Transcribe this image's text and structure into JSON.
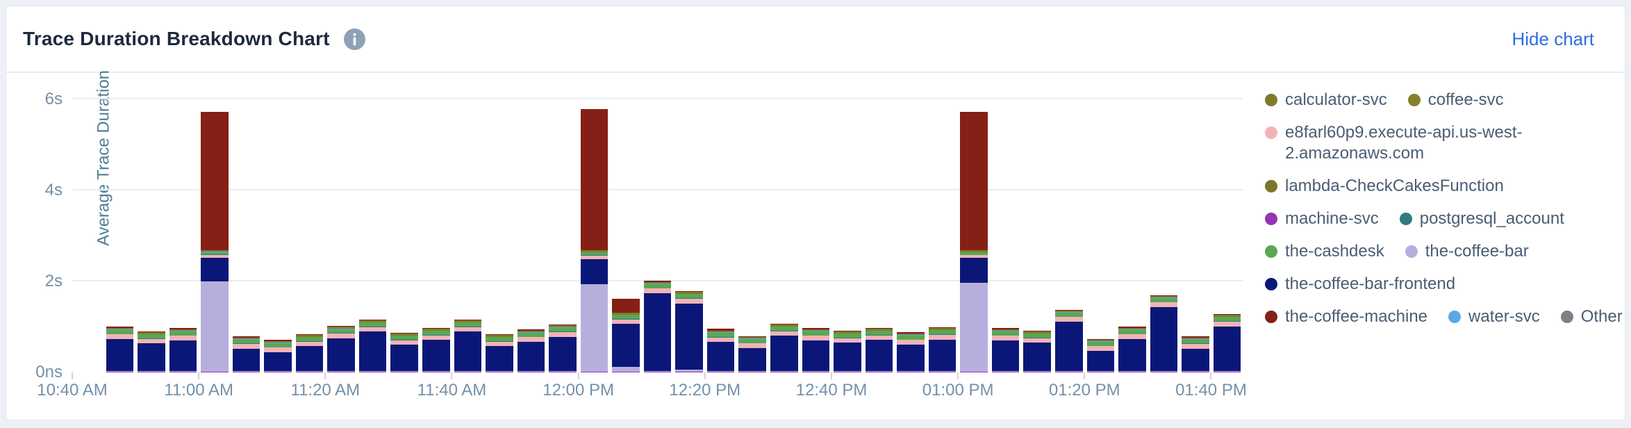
{
  "header": {
    "title": "Trace Duration Breakdown Chart",
    "info_icon": "info-icon",
    "hide_chart_label": "Hide chart"
  },
  "chart_data": {
    "type": "bar",
    "stacked": true,
    "title": "Trace Duration Breakdown Chart",
    "xlabel": "",
    "ylabel": "Average Trace Duration",
    "grid": true,
    "legend_position": "right",
    "y_max_render": 6.38,
    "total_slots": 37,
    "first_bar_offset_slots": 1,
    "y_ticks": [
      {
        "label": "6s",
        "value": 6
      },
      {
        "label": "4s",
        "value": 4
      },
      {
        "label": "2s",
        "value": 2
      },
      {
        "label": "0ns",
        "value": 0
      }
    ],
    "x_ticks": [
      {
        "label": "10:40 AM",
        "slot": 0
      },
      {
        "label": "11:00 AM",
        "slot": 4
      },
      {
        "label": "11:20 AM",
        "slot": 8
      },
      {
        "label": "11:40 AM",
        "slot": 12
      },
      {
        "label": "12:00 PM",
        "slot": 16
      },
      {
        "label": "12:20 PM",
        "slot": 20
      },
      {
        "label": "12:40 PM",
        "slot": 24
      },
      {
        "label": "01:00 PM",
        "slot": 28
      },
      {
        "label": "01:20 PM",
        "slot": 32
      },
      {
        "label": "01:40 PM",
        "slot": 36
      }
    ],
    "categories": [
      "10:45",
      "10:50",
      "10:55",
      "11:00",
      "11:05",
      "11:10",
      "11:15",
      "11:20",
      "11:25",
      "11:30",
      "11:35",
      "11:40",
      "11:45",
      "11:50",
      "11:55",
      "12:00",
      "12:05",
      "12:10",
      "12:15",
      "12:20",
      "12:25",
      "12:30",
      "12:35",
      "12:40",
      "12:45",
      "12:50",
      "12:55",
      "13:00",
      "13:05",
      "13:10",
      "13:15",
      "13:20",
      "13:25",
      "13:30",
      "13:35",
      "13:40"
    ],
    "series": [
      {
        "name": "machine-svc",
        "color": "#9633b5",
        "values": [
          0.015,
          0.015,
          0.015,
          0.015,
          0.015,
          0.015,
          0.015,
          0.015,
          0.015,
          0.015,
          0.015,
          0.015,
          0.015,
          0.015,
          0.015,
          0.015,
          0.015,
          0.015,
          0.015,
          0.015,
          0.015,
          0.015,
          0.015,
          0.015,
          0.015,
          0.015,
          0.015,
          0.015,
          0.015,
          0.015,
          0.015,
          0.015,
          0.015,
          0.015,
          0.015,
          0.015
        ]
      },
      {
        "name": "the-coffee-bar",
        "color": "#b6afdd",
        "values": [
          0.01,
          0.01,
          0.01,
          1.99,
          0.01,
          0.01,
          0.01,
          0.01,
          0.01,
          0.02,
          0.01,
          0.01,
          0.01,
          0.01,
          0.01,
          1.93,
          0.1,
          0.01,
          0.05,
          0.01,
          0.01,
          0.01,
          0.01,
          0.01,
          0.01,
          0.01,
          0.01,
          1.95,
          0.01,
          0.01,
          0.01,
          0.01,
          0.01,
          0.01,
          0.01,
          0.01
        ]
      },
      {
        "name": "the-coffee-bar-frontend",
        "color": "#0b1778",
        "values": [
          0.71,
          0.61,
          0.68,
          0.52,
          0.5,
          0.42,
          0.55,
          0.73,
          0.87,
          0.57,
          0.69,
          0.87,
          0.55,
          0.65,
          0.76,
          0.55,
          0.95,
          1.72,
          1.45,
          0.64,
          0.51,
          0.78,
          0.68,
          0.63,
          0.69,
          0.59,
          0.7,
          0.55,
          0.68,
          0.63,
          1.09,
          0.45,
          0.71,
          1.41,
          0.5,
          0.99
        ]
      },
      {
        "name": "e8farl60p9.execute-api.us-west-2.amazonaws.com",
        "color": "#f2b3b7",
        "values": [
          0.1,
          0.1,
          0.1,
          0.06,
          0.1,
          0.1,
          0.1,
          0.1,
          0.1,
          0.1,
          0.1,
          0.1,
          0.1,
          0.1,
          0.1,
          0.07,
          0.1,
          0.1,
          0.1,
          0.1,
          0.1,
          0.1,
          0.1,
          0.1,
          0.1,
          0.1,
          0.1,
          0.06,
          0.1,
          0.1,
          0.1,
          0.1,
          0.1,
          0.1,
          0.1,
          0.1
        ]
      },
      {
        "name": "postgresql_account",
        "color": "#2f7b80",
        "values": [
          0.01,
          0.01,
          0.01,
          0.01,
          0.01,
          0.01,
          0.01,
          0.01,
          0.01,
          0.01,
          0.01,
          0.01,
          0.01,
          0.01,
          0.01,
          0.01,
          0.01,
          0.01,
          0.02,
          0.02,
          0.01,
          0.01,
          0.01,
          0.01,
          0.01,
          0.01,
          0.01,
          0.01,
          0.01,
          0.01,
          0.01,
          0.01,
          0.01,
          0.01,
          0.01,
          0.01
        ]
      },
      {
        "name": "the-cashdesk",
        "color": "#58a853",
        "values": [
          0.09,
          0.09,
          0.09,
          0.05,
          0.09,
          0.09,
          0.09,
          0.09,
          0.09,
          0.09,
          0.09,
          0.09,
          0.09,
          0.09,
          0.09,
          0.06,
          0.09,
          0.09,
          0.09,
          0.09,
          0.09,
          0.09,
          0.09,
          0.09,
          0.09,
          0.09,
          0.09,
          0.05,
          0.09,
          0.09,
          0.09,
          0.09,
          0.09,
          0.09,
          0.09,
          0.09
        ]
      },
      {
        "name": "water-svc",
        "color": "#57a9e8",
        "values": [
          0.008,
          0.008,
          0.008,
          0.008,
          0.008,
          0.008,
          0.008,
          0.008,
          0.008,
          0.008,
          0.008,
          0.008,
          0.008,
          0.008,
          0.008,
          0.008,
          0.008,
          0.008,
          0.008,
          0.008,
          0.008,
          0.008,
          0.008,
          0.008,
          0.008,
          0.008,
          0.008,
          0.008,
          0.008,
          0.008,
          0.008,
          0.008,
          0.008,
          0.008,
          0.008,
          0.008
        ]
      },
      {
        "name": "calculator-svc",
        "color": "#7f7b2a",
        "values": [
          0.012,
          0.012,
          0.012,
          0.012,
          0.012,
          0.012,
          0.012,
          0.012,
          0.012,
          0.012,
          0.012,
          0.012,
          0.012,
          0.012,
          0.012,
          0.012,
          0.012,
          0.012,
          0.012,
          0.012,
          0.012,
          0.012,
          0.012,
          0.012,
          0.012,
          0.012,
          0.012,
          0.012,
          0.012,
          0.012,
          0.012,
          0.012,
          0.012,
          0.012,
          0.012,
          0.012
        ]
      },
      {
        "name": "coffee-svc",
        "color": "#85802c",
        "values": [
          0.012,
          0.012,
          0.012,
          0.012,
          0.012,
          0.012,
          0.012,
          0.012,
          0.012,
          0.012,
          0.012,
          0.012,
          0.012,
          0.012,
          0.012,
          0.012,
          0.012,
          0.012,
          0.012,
          0.012,
          0.012,
          0.012,
          0.012,
          0.012,
          0.012,
          0.012,
          0.012,
          0.012,
          0.012,
          0.012,
          0.012,
          0.012,
          0.012,
          0.012,
          0.012,
          0.012
        ]
      },
      {
        "name": "lambda-CheckCakesFunction",
        "color": "#78762a",
        "values": [
          0.015,
          0.015,
          0.015,
          0.015,
          0.015,
          0.015,
          0.015,
          0.015,
          0.015,
          0.015,
          0.015,
          0.015,
          0.015,
          0.015,
          0.015,
          0.015,
          0.015,
          0.015,
          0.015,
          0.015,
          0.015,
          0.015,
          0.015,
          0.015,
          0.015,
          0.015,
          0.015,
          0.015,
          0.015,
          0.015,
          0.015,
          0.015,
          0.015,
          0.015,
          0.015,
          0.015
        ]
      },
      {
        "name": "the-coffee-machine",
        "color": "#842015",
        "values": [
          0.02,
          0.02,
          0.02,
          3.04,
          0.02,
          0.02,
          0.02,
          0.02,
          0.02,
          0.02,
          0.02,
          0.02,
          0.02,
          0.02,
          0.02,
          3.1,
          0.3,
          0.02,
          0.02,
          0.035,
          0.02,
          0.02,
          0.02,
          0.02,
          0.02,
          0.02,
          0.02,
          3.05,
          0.02,
          0.02,
          0.02,
          0.02,
          0.02,
          0.02,
          0.02,
          0.02
        ]
      },
      {
        "name": "Other",
        "color": "#7d8186",
        "values": [
          0,
          0,
          0,
          0,
          0,
          0,
          0,
          0,
          0,
          0,
          0,
          0,
          0,
          0,
          0,
          0,
          0,
          0,
          0,
          0,
          0,
          0,
          0,
          0,
          0,
          0,
          0,
          0,
          0,
          0,
          0,
          0,
          0,
          0,
          0,
          0
        ]
      }
    ],
    "legend": [
      {
        "name": "calculator-svc",
        "color": "#7f7b2a"
      },
      {
        "name": "coffee-svc",
        "color": "#85802c"
      },
      {
        "name": "e8farl60p9.execute-api.us-west-2.amazonaws.com",
        "color": "#f2b3b7"
      },
      {
        "name": "lambda-CheckCakesFunction",
        "color": "#78762a"
      },
      {
        "name": "machine-svc",
        "color": "#9633b5"
      },
      {
        "name": "postgresql_account",
        "color": "#2f7b80"
      },
      {
        "name": "the-cashdesk",
        "color": "#58a853"
      },
      {
        "name": "the-coffee-bar",
        "color": "#b6afdd"
      },
      {
        "name": "the-coffee-bar-frontend",
        "color": "#0b1778"
      },
      {
        "name": "the-coffee-machine",
        "color": "#842015"
      },
      {
        "name": "water-svc",
        "color": "#57a9e8"
      },
      {
        "name": "Other",
        "color": "#7d8186"
      }
    ]
  }
}
